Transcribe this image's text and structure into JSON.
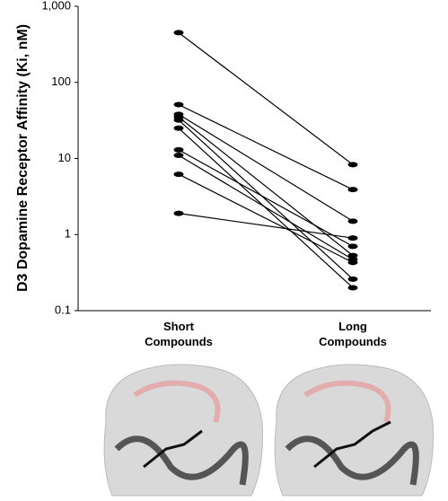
{
  "chart_data": {
    "type": "line",
    "y_label": "D3 Dopamine Receptor Affinity (Ki, nM)",
    "categories": [
      "Short Compounds",
      "Long Compounds"
    ],
    "log_scale": true,
    "ylim": [
      0.1,
      1000
    ],
    "yticks": [
      0.1,
      1,
      10,
      100,
      {
        "value": 1000,
        "label": "1,000"
      }
    ],
    "series": [
      {
        "color": "#000000",
        "values": [
          450,
          8.3
        ]
      },
      {
        "color": "#000000",
        "values": [
          51,
          3.9
        ]
      },
      {
        "color": "#000000",
        "values": [
          38,
          1.5
        ]
      },
      {
        "color": "#000000",
        "values": [
          35,
          0.53
        ]
      },
      {
        "color": "#000000",
        "values": [
          32,
          0.26
        ]
      },
      {
        "color": "#000000",
        "values": [
          25,
          0.2
        ]
      },
      {
        "color": "#000000",
        "values": [
          13,
          0.7
        ]
      },
      {
        "color": "#000000",
        "values": [
          11,
          0.47
        ]
      },
      {
        "color": "#000000",
        "values": [
          6.2,
          0.43
        ]
      },
      {
        "color": "#000000",
        "values": [
          1.9,
          0.9
        ]
      }
    ]
  }
}
